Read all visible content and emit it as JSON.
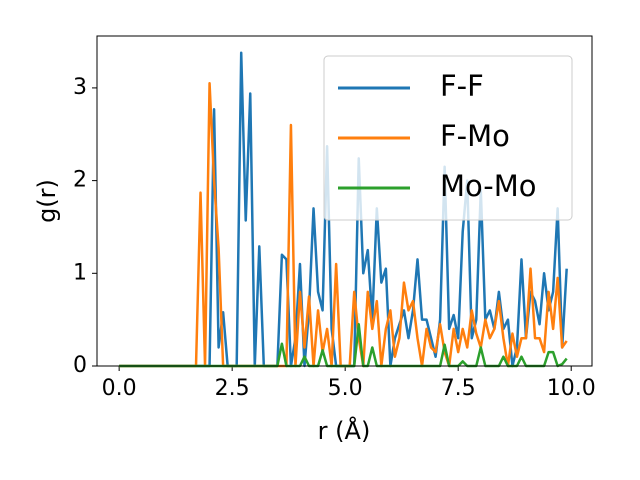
{
  "chart_data": {
    "type": "line",
    "xlabel": "r (Å)",
    "ylabel": "g(r)",
    "xlim": [
      -0.49,
      10.46
    ],
    "ylim": [
      0,
      3.56
    ],
    "xticks": [
      {
        "value": 0,
        "label": "0.0"
      },
      2.5,
      {
        "value": 5,
        "label": "5.0"
      },
      7.5,
      {
        "value": 10,
        "label": "10.0"
      }
    ],
    "yticks": [
      0,
      1,
      2,
      3
    ],
    "legend": "upper right",
    "x": [
      0,
      0.1,
      0.2,
      0.3,
      0.4,
      0.5,
      0.6,
      0.7,
      0.8,
      0.9,
      1,
      1.1,
      1.2,
      1.3,
      1.4,
      1.5,
      1.6,
      1.7,
      1.8,
      1.9,
      2,
      2.1,
      2.2,
      2.3,
      2.4,
      2.5,
      2.6,
      2.7,
      2.8,
      2.9,
      3,
      3.1,
      3.2,
      3.3,
      3.4,
      3.5,
      3.6,
      3.7,
      3.8,
      3.9,
      4,
      4.1,
      4.2,
      4.3,
      4.4,
      4.5,
      4.6,
      4.7,
      4.8,
      4.9,
      5,
      5.1,
      5.2,
      5.3,
      5.4,
      5.5,
      5.6,
      5.7,
      5.8,
      5.9,
      6,
      6.1,
      6.2,
      6.3,
      6.4,
      6.5,
      6.6,
      6.7,
      6.8,
      6.9,
      7,
      7.1,
      7.2,
      7.3,
      7.4,
      7.5,
      7.6,
      7.7,
      7.8,
      7.9,
      8,
      8.1,
      8.2,
      8.3,
      8.4,
      8.5,
      8.6,
      8.7,
      8.8,
      8.9,
      9,
      9.1,
      9.2,
      9.3,
      9.4,
      9.5,
      9.6,
      9.7,
      9.8,
      9.9
    ],
    "series": [
      {
        "name": "F-F",
        "color": "#1f77b4",
        "values": [
          0,
          0,
          0,
          0,
          0,
          0,
          0,
          0,
          0,
          0,
          0,
          0,
          0,
          0,
          0,
          0,
          0,
          0,
          0,
          0,
          0,
          2.77,
          0.2,
          0.58,
          0,
          0,
          0,
          3.38,
          1.57,
          2.94,
          0,
          1.29,
          0,
          0,
          0,
          0,
          1.2,
          1.15,
          0,
          0.3,
          1.1,
          0,
          0.6,
          1.7,
          0.8,
          0.6,
          2.37,
          0.4,
          0,
          0,
          0,
          0,
          0,
          2.24,
          1.0,
          1.25,
          0.5,
          1.7,
          0.9,
          1.05,
          0,
          0.3,
          0.45,
          0.6,
          0.3,
          0.6,
          1.15,
          0.5,
          0.5,
          0.3,
          0.1,
          0.5,
          2.15,
          0.4,
          0.55,
          0.3,
          1.45,
          2.0,
          0.3,
          0.5,
          1.9,
          0.5,
          0.6,
          0.4,
          0.8,
          0.4,
          0.5,
          0,
          0.2,
          1.15,
          0.3,
          0.8,
          0.7,
          0.45,
          1.0,
          0.6,
          0.8,
          1.7,
          0.2,
          1.05
        ]
      },
      {
        "name": "F-Mo",
        "color": "#ff7f0e",
        "values": [
          0,
          0,
          0,
          0,
          0,
          0,
          0,
          0,
          0,
          0,
          0,
          0,
          0,
          0,
          0,
          0,
          0,
          0,
          1.87,
          0,
          3.05,
          2.0,
          1.27,
          0,
          0,
          0,
          0,
          0,
          0,
          0,
          0,
          0,
          0,
          0,
          0,
          0,
          0,
          0,
          2.6,
          0,
          0.8,
          0.2,
          0.75,
          0,
          0.6,
          0.15,
          0.4,
          0,
          1.1,
          0,
          0,
          0,
          0.8,
          0.3,
          0,
          0.8,
          0.4,
          0.7,
          0,
          0.4,
          0.6,
          0.1,
          0.3,
          0.9,
          0.6,
          0.7,
          0.3,
          0,
          0.4,
          0.2,
          0.15,
          0.45,
          0.15,
          0,
          0.4,
          0.15,
          0.4,
          0.2,
          0.6,
          0.35,
          0.2,
          0.5,
          0.3,
          0.4,
          0.7,
          0.3,
          0,
          0.35,
          0.1,
          0.3,
          0.3,
          1.05,
          0.3,
          0.3,
          0.15,
          0.8,
          0.4,
          0.95,
          0.2,
          0.27
        ]
      },
      {
        "name": "Mo-Mo",
        "color": "#2ca02c",
        "values": [
          0,
          0,
          0,
          0,
          0,
          0,
          0,
          0,
          0,
          0,
          0,
          0,
          0,
          0,
          0,
          0,
          0,
          0,
          0,
          0,
          0,
          0,
          0,
          0,
          0,
          0,
          0,
          0,
          0,
          0,
          0,
          0,
          0,
          0,
          0,
          0,
          0.24,
          0,
          0,
          0,
          0,
          0.1,
          0,
          0,
          0,
          0.17,
          0,
          0,
          0,
          0,
          0,
          0,
          0,
          0.45,
          0,
          0,
          0.2,
          0,
          0,
          0,
          0,
          0,
          0,
          0,
          0,
          0,
          0,
          0,
          0,
          0,
          0,
          0,
          0.23,
          0,
          0,
          0,
          0.05,
          0,
          0,
          0,
          0.2,
          0,
          0,
          0,
          0,
          0.1,
          0,
          0,
          0,
          0.1,
          0,
          0,
          0,
          0,
          0,
          0.15,
          0.15,
          0,
          0.02,
          0.08
        ]
      }
    ]
  }
}
